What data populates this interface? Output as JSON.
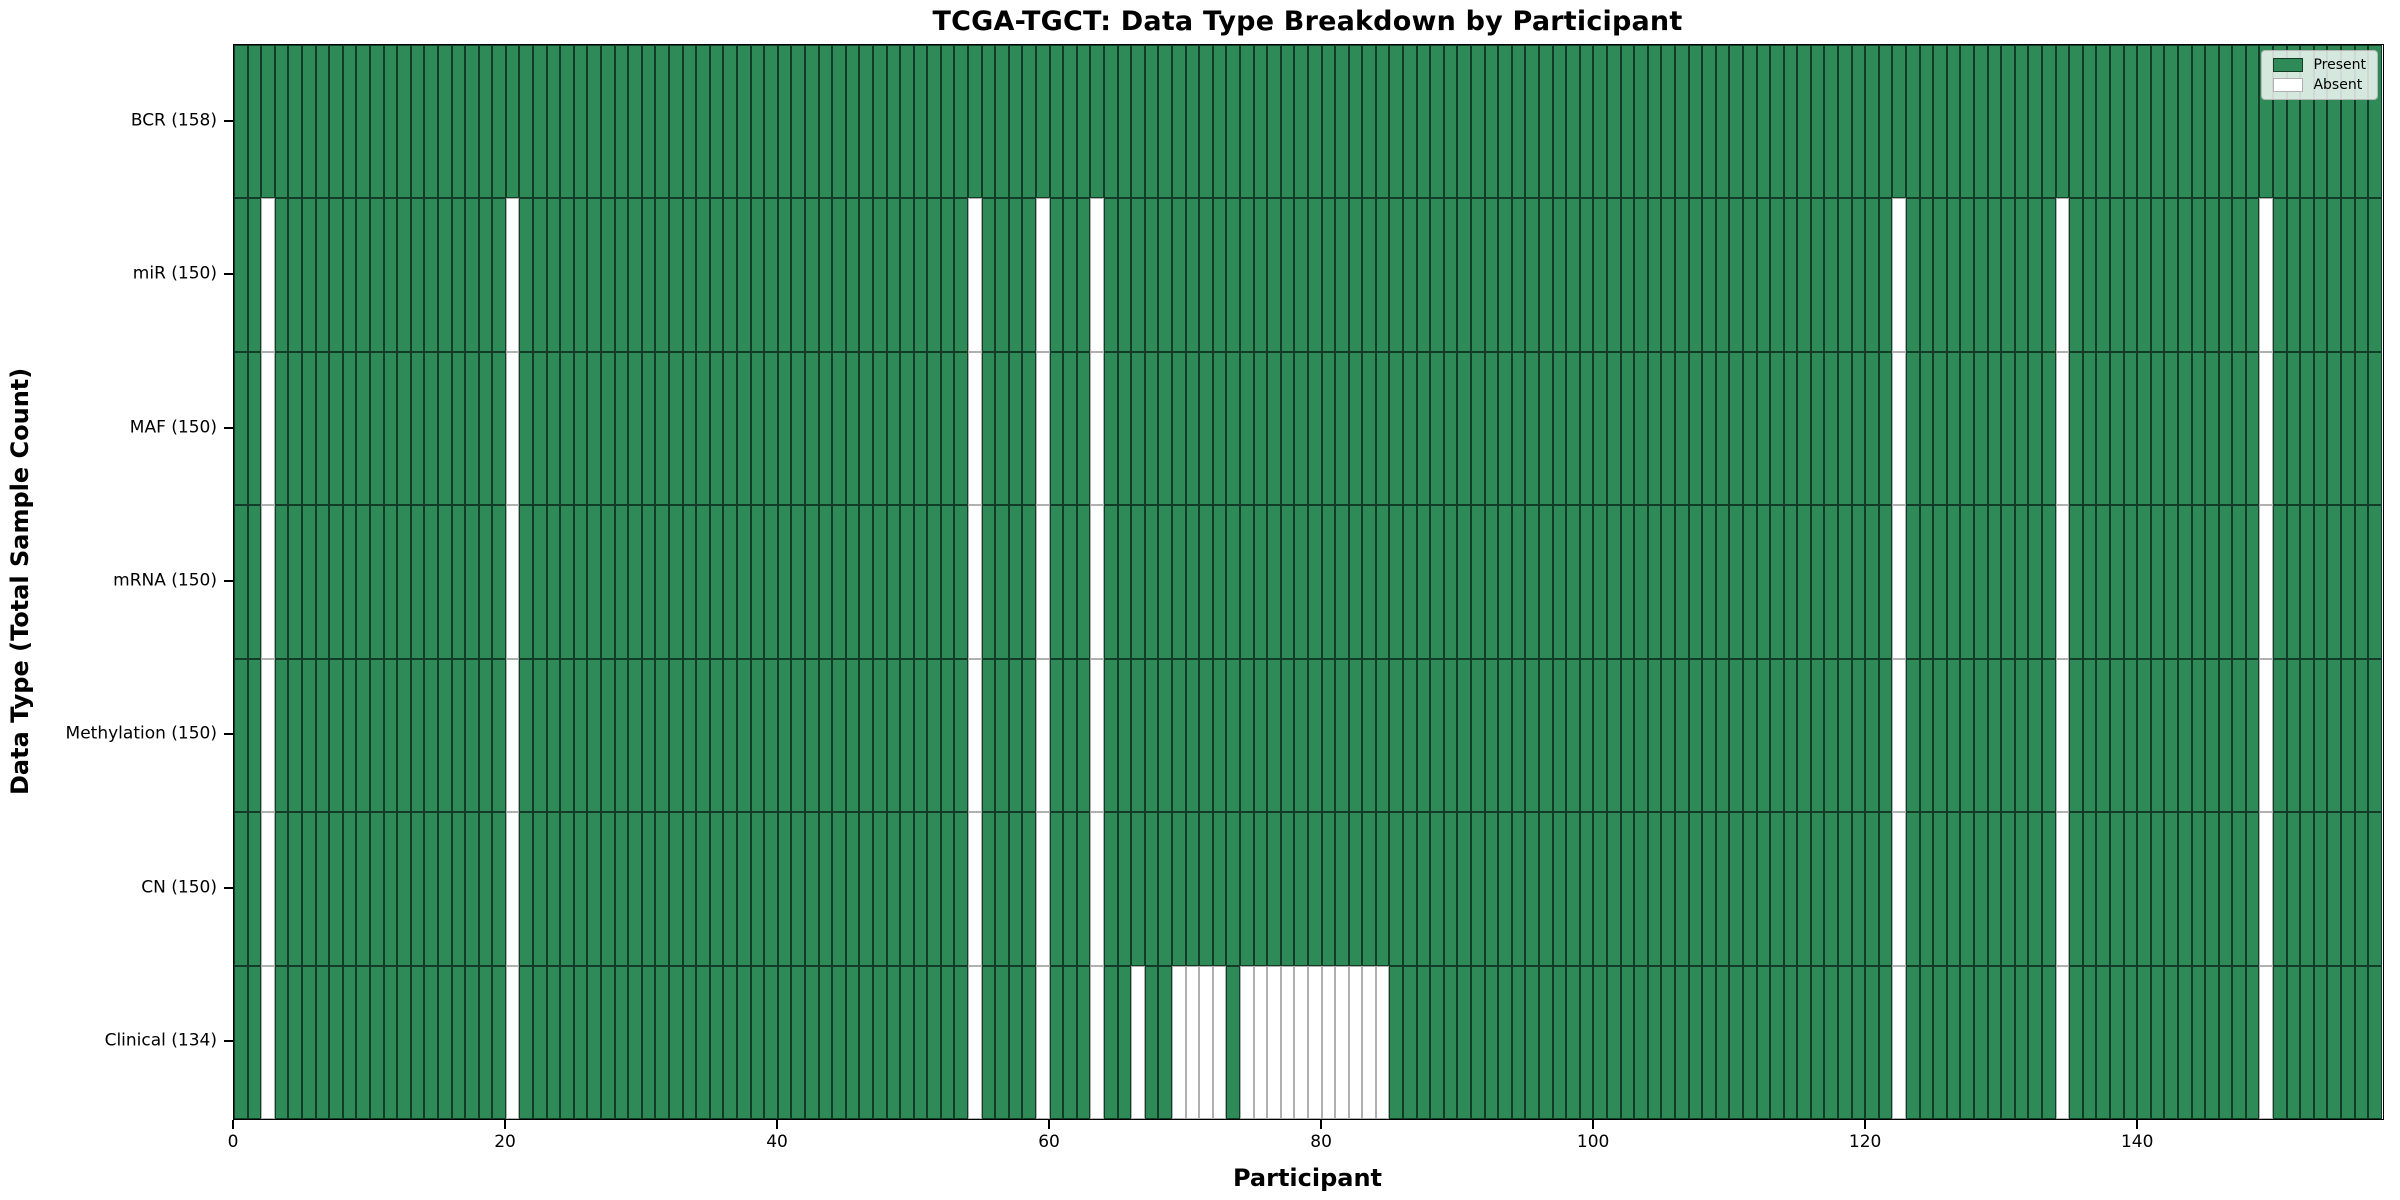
{
  "chart_data": {
    "type": "heatmap",
    "title": "TCGA-TGCT: Data Type Breakdown by Participant",
    "xlabel": "Participant",
    "ylabel": "Data Type (Total Sample Count)",
    "n_participants": 158,
    "x_ticks": [
      0,
      20,
      40,
      60,
      80,
      100,
      120,
      140
    ],
    "grid": false,
    "rows": [
      {
        "label": "BCR (158)",
        "total_samples": 158,
        "absent_participants": []
      },
      {
        "label": "miR (150)",
        "total_samples": 150,
        "absent_participants": [
          2,
          20,
          54,
          59,
          63,
          122,
          134,
          149
        ]
      },
      {
        "label": "MAF (150)",
        "total_samples": 150,
        "absent_participants": [
          2,
          20,
          54,
          59,
          63,
          122,
          134,
          149
        ]
      },
      {
        "label": "mRNA (150)",
        "total_samples": 150,
        "absent_participants": [
          2,
          20,
          54,
          59,
          63,
          122,
          134,
          149
        ]
      },
      {
        "label": "Methylation (150)",
        "total_samples": 150,
        "absent_participants": [
          2,
          20,
          54,
          59,
          63,
          122,
          134,
          149
        ]
      },
      {
        "label": "CN (150)",
        "total_samples": 150,
        "absent_participants": [
          2,
          20,
          54,
          59,
          63,
          122,
          134,
          149
        ]
      },
      {
        "label": "Clinical (134)",
        "total_samples": 134,
        "absent_participants": [
          2,
          20,
          54,
          59,
          63,
          66,
          69,
          70,
          71,
          72,
          74,
          75,
          76,
          77,
          78,
          79,
          80,
          81,
          82,
          83,
          84,
          122,
          134,
          149
        ]
      }
    ],
    "legend": {
      "position": "upper right",
      "entries": [
        {
          "label": "Present",
          "color": "#2e8b57"
        },
        {
          "label": "Absent",
          "color": "#ffffff"
        }
      ]
    },
    "colors": {
      "present_fill": "#2e8b57",
      "present_edge": "#123c27",
      "absent_fill": "#ffffff",
      "absent_edge": "#b0b0b0",
      "spine": "#000000",
      "legend_border": "#b5b5b5"
    }
  }
}
